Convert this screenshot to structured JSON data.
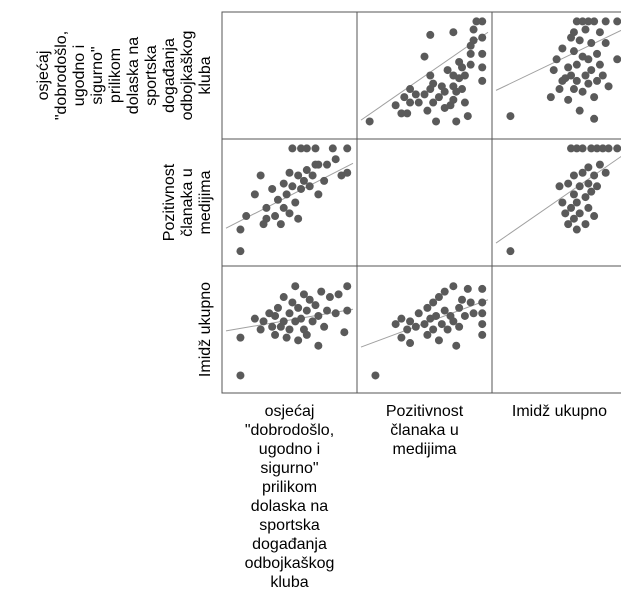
{
  "chart_data": {
    "type": "scatter-matrix",
    "title": "",
    "variables": [
      {
        "key": "osjecaj",
        "label_lines": [
          "osjećaj",
          "\"dobrodošlo,",
          "ugodno i",
          "sigurno\"",
          "prilikom",
          "dolaska na",
          "sportska",
          "događanja",
          "odbojkaškog",
          "kluba"
        ]
      },
      {
        "key": "pozitivnost",
        "label_lines": [
          "Pozitivnost",
          "članaka u",
          "medijima"
        ]
      },
      {
        "key": "imidz",
        "label_lines": [
          "Imidž ukupno"
        ]
      }
    ],
    "fit_line": true,
    "grid": false,
    "point_color": "#5a5a5a",
    "line_color": "#a0a0a0",
    "frame_color": "#555555",
    "cells": [
      {
        "row": 0,
        "col": 1,
        "x_var": "pozitivnost",
        "y_var": "osjecaj",
        "xlim": [
          0.8,
          5.2
        ],
        "ylim": [
          0.8,
          5.2
        ],
        "fit": {
          "x0": 0.8,
          "y0": 1.35,
          "x1": 5.2,
          "y1": 4.6
        },
        "points": [
          [
            1.1,
            1.3
          ],
          [
            2.0,
            1.9
          ],
          [
            2.2,
            1.6
          ],
          [
            2.3,
            2.2
          ],
          [
            2.4,
            1.6
          ],
          [
            2.5,
            2.0
          ],
          [
            2.5,
            2.5
          ],
          [
            2.7,
            2.3
          ],
          [
            2.8,
            2.0
          ],
          [
            3.0,
            2.3
          ],
          [
            3.1,
            1.7
          ],
          [
            3.2,
            2.5
          ],
          [
            3.2,
            3.0
          ],
          [
            3.3,
            2.0
          ],
          [
            3.3,
            2.7
          ],
          [
            3.4,
            1.3
          ],
          [
            3.5,
            2.2
          ],
          [
            3.6,
            2.6
          ],
          [
            3.7,
            2.4
          ],
          [
            3.7,
            1.8
          ],
          [
            3.8,
            3.2
          ],
          [
            3.9,
            1.9
          ],
          [
            4.0,
            3.0
          ],
          [
            4.0,
            2.6
          ],
          [
            4.0,
            2.1
          ],
          [
            4.1,
            2.4
          ],
          [
            4.1,
            1.3
          ],
          [
            4.2,
            3.5
          ],
          [
            4.2,
            2.9
          ],
          [
            4.3,
            2.5
          ],
          [
            4.3,
            3.3
          ],
          [
            4.4,
            3.0
          ],
          [
            4.4,
            2.0
          ],
          [
            4.5,
            1.5
          ],
          [
            4.6,
            4.1
          ],
          [
            4.6,
            3.8
          ],
          [
            4.6,
            3.4
          ],
          [
            4.7,
            4.7
          ],
          [
            4.7,
            4.3
          ],
          [
            4.8,
            5.0
          ],
          [
            5.0,
            5.0
          ],
          [
            5.0,
            4.4
          ],
          [
            5.0,
            3.8
          ],
          [
            5.0,
            3.3
          ],
          [
            5.0,
            2.8
          ],
          [
            4.0,
            4.6
          ],
          [
            3.2,
            4.5
          ],
          [
            3.0,
            3.7
          ]
        ]
      },
      {
        "row": 0,
        "col": 2,
        "x_var": "imidz",
        "y_var": "osjecaj",
        "xlim": [
          0.8,
          5.2
        ],
        "ylim": [
          0.8,
          5.2
        ],
        "fit": {
          "x0": 0.8,
          "y0": 2.45,
          "x1": 5.2,
          "y1": 4.7
        },
        "points": [
          [
            1.3,
            1.5
          ],
          [
            2.7,
            2.2
          ],
          [
            2.8,
            3.2
          ],
          [
            2.9,
            3.6
          ],
          [
            3.0,
            2.5
          ],
          [
            3.1,
            2.8
          ],
          [
            3.1,
            4.0
          ],
          [
            3.2,
            2.9
          ],
          [
            3.3,
            2.1
          ],
          [
            3.3,
            3.3
          ],
          [
            3.4,
            4.4
          ],
          [
            3.4,
            3.0
          ],
          [
            3.5,
            2.5
          ],
          [
            3.5,
            3.9
          ],
          [
            3.6,
            3.4
          ],
          [
            3.6,
            2.8
          ],
          [
            3.7,
            4.3
          ],
          [
            3.7,
            1.7
          ],
          [
            3.8,
            3.7
          ],
          [
            3.8,
            2.4
          ],
          [
            3.9,
            4.7
          ],
          [
            3.9,
            3.0
          ],
          [
            4.0,
            5.0
          ],
          [
            4.0,
            3.6
          ],
          [
            4.0,
            2.7
          ],
          [
            4.1,
            4.2
          ],
          [
            4.1,
            3.2
          ],
          [
            4.2,
            2.2
          ],
          [
            4.2,
            1.4
          ],
          [
            4.3,
            3.8
          ],
          [
            4.3,
            2.8
          ],
          [
            4.4,
            4.6
          ],
          [
            4.4,
            3.4
          ],
          [
            4.5,
            3.0
          ],
          [
            4.6,
            5.0
          ],
          [
            4.6,
            4.2
          ],
          [
            4.7,
            2.6
          ],
          [
            5.0,
            5.0
          ],
          [
            5.0,
            3.6
          ],
          [
            3.6,
            5.0
          ],
          [
            3.5,
            4.6
          ],
          [
            3.8,
            5.0
          ],
          [
            4.2,
            5.0
          ]
        ]
      },
      {
        "row": 1,
        "col": 0,
        "x_var": "osjecaj",
        "y_var": "pozitivnost",
        "xlim": [
          0.8,
          5.2
        ],
        "ylim": [
          0.8,
          5.2
        ],
        "fit": {
          "x0": 0.8,
          "y0": 2.05,
          "x1": 5.2,
          "y1": 4.45
        },
        "points": [
          [
            1.3,
            1.2
          ],
          [
            1.3,
            2.0
          ],
          [
            1.5,
            2.5
          ],
          [
            1.8,
            3.3
          ],
          [
            2.0,
            4.0
          ],
          [
            2.1,
            2.2
          ],
          [
            2.2,
            2.8
          ],
          [
            2.2,
            2.4
          ],
          [
            2.4,
            3.5
          ],
          [
            2.5,
            2.5
          ],
          [
            2.6,
            3.1
          ],
          [
            2.7,
            2.2
          ],
          [
            2.8,
            3.7
          ],
          [
            2.8,
            2.8
          ],
          [
            2.9,
            3.3
          ],
          [
            3.0,
            4.1
          ],
          [
            3.0,
            2.6
          ],
          [
            3.1,
            5.0
          ],
          [
            3.1,
            3.6
          ],
          [
            3.2,
            3.0
          ],
          [
            3.3,
            4.0
          ],
          [
            3.3,
            2.4
          ],
          [
            3.4,
            3.5
          ],
          [
            3.4,
            5.0
          ],
          [
            3.5,
            3.8
          ],
          [
            3.6,
            4.2
          ],
          [
            3.6,
            5.0
          ],
          [
            3.7,
            3.6
          ],
          [
            3.8,
            4.0
          ],
          [
            3.9,
            5.0
          ],
          [
            4.0,
            4.4
          ],
          [
            4.0,
            3.3
          ],
          [
            4.2,
            3.8
          ],
          [
            4.3,
            4.4
          ],
          [
            4.5,
            5.0
          ],
          [
            4.8,
            4.0
          ],
          [
            5.0,
            5.0
          ],
          [
            5.0,
            4.1
          ],
          [
            3.9,
            4.4
          ],
          [
            4.6,
            4.6
          ]
        ]
      },
      {
        "row": 1,
        "col": 2,
        "x_var": "imidz",
        "y_var": "pozitivnost",
        "xlim": [
          0.8,
          5.2
        ],
        "ylim": [
          0.8,
          5.2
        ],
        "fit": {
          "x0": 0.8,
          "y0": 1.5,
          "x1": 5.2,
          "y1": 4.75
        },
        "points": [
          [
            1.3,
            1.2
          ],
          [
            3.0,
            3.6
          ],
          [
            3.1,
            3.0
          ],
          [
            3.2,
            2.6
          ],
          [
            3.3,
            2.2
          ],
          [
            3.3,
            3.7
          ],
          [
            3.4,
            5.0
          ],
          [
            3.4,
            2.8
          ],
          [
            3.5,
            4.0
          ],
          [
            3.5,
            3.3
          ],
          [
            3.5,
            2.4
          ],
          [
            3.6,
            5.0
          ],
          [
            3.6,
            3.0
          ],
          [
            3.6,
            2.0
          ],
          [
            3.7,
            3.6
          ],
          [
            3.7,
            2.6
          ],
          [
            3.8,
            5.0
          ],
          [
            3.8,
            4.1
          ],
          [
            3.9,
            3.2
          ],
          [
            3.9,
            2.2
          ],
          [
            4.0,
            4.3
          ],
          [
            4.0,
            3.7
          ],
          [
            4.0,
            2.8
          ],
          [
            4.1,
            5.0
          ],
          [
            4.1,
            3.4
          ],
          [
            4.2,
            4.0
          ],
          [
            4.3,
            5.0
          ],
          [
            4.3,
            3.6
          ],
          [
            4.4,
            4.4
          ],
          [
            4.5,
            5.0
          ],
          [
            4.6,
            4.1
          ],
          [
            4.7,
            5.0
          ],
          [
            5.0,
            5.0
          ],
          [
            4.2,
            2.5
          ]
        ]
      },
      {
        "row": 2,
        "col": 0,
        "x_var": "osjecaj",
        "y_var": "imidz",
        "xlim": [
          0.8,
          5.2
        ],
        "ylim": [
          0.8,
          5.2
        ],
        "fit": {
          "x0": 0.8,
          "y0": 2.95,
          "x1": 5.2,
          "y1": 3.75
        },
        "points": [
          [
            1.3,
            1.3
          ],
          [
            1.3,
            2.7
          ],
          [
            1.8,
            3.4
          ],
          [
            2.0,
            3.0
          ],
          [
            2.1,
            3.3
          ],
          [
            2.3,
            3.6
          ],
          [
            2.4,
            3.1
          ],
          [
            2.5,
            2.8
          ],
          [
            2.5,
            3.5
          ],
          [
            2.6,
            3.8
          ],
          [
            2.7,
            3.1
          ],
          [
            2.8,
            4.2
          ],
          [
            2.8,
            3.3
          ],
          [
            2.9,
            2.7
          ],
          [
            3.0,
            3.6
          ],
          [
            3.0,
            3.0
          ],
          [
            3.1,
            4.0
          ],
          [
            3.2,
            3.3
          ],
          [
            3.2,
            4.6
          ],
          [
            3.3,
            2.6
          ],
          [
            3.3,
            3.8
          ],
          [
            3.4,
            3.4
          ],
          [
            3.5,
            4.3
          ],
          [
            3.5,
            3.0
          ],
          [
            3.6,
            3.7
          ],
          [
            3.6,
            2.8
          ],
          [
            3.7,
            4.1
          ],
          [
            3.8,
            3.3
          ],
          [
            3.9,
            3.9
          ],
          [
            4.0,
            2.4
          ],
          [
            4.0,
            3.5
          ],
          [
            4.1,
            4.4
          ],
          [
            4.2,
            3.1
          ],
          [
            4.3,
            3.7
          ],
          [
            4.4,
            4.2
          ],
          [
            4.6,
            3.6
          ],
          [
            4.7,
            4.3
          ],
          [
            5.0,
            3.7
          ],
          [
            5.0,
            4.6
          ],
          [
            4.9,
            2.9
          ]
        ]
      },
      {
        "row": 2,
        "col": 1,
        "x_var": "pozitivnost",
        "y_var": "imidz",
        "xlim": [
          0.8,
          5.2
        ],
        "ylim": [
          0.8,
          5.2
        ],
        "fit": {
          "x0": 0.8,
          "y0": 2.35,
          "x1": 5.2,
          "y1": 4.1
        },
        "points": [
          [
            1.3,
            1.3
          ],
          [
            2.0,
            3.2
          ],
          [
            2.2,
            2.7
          ],
          [
            2.2,
            3.4
          ],
          [
            2.4,
            3.0
          ],
          [
            2.5,
            3.3
          ],
          [
            2.5,
            2.5
          ],
          [
            2.7,
            3.1
          ],
          [
            2.8,
            3.6
          ],
          [
            3.0,
            3.2
          ],
          [
            3.1,
            2.8
          ],
          [
            3.1,
            3.8
          ],
          [
            3.2,
            3.4
          ],
          [
            3.3,
            4.0
          ],
          [
            3.3,
            3.0
          ],
          [
            3.4,
            3.5
          ],
          [
            3.5,
            2.6
          ],
          [
            3.5,
            4.2
          ],
          [
            3.6,
            3.2
          ],
          [
            3.7,
            3.7
          ],
          [
            3.7,
            4.4
          ],
          [
            3.8,
            3.0
          ],
          [
            3.9,
            3.5
          ],
          [
            4.0,
            4.6
          ],
          [
            4.0,
            3.3
          ],
          [
            4.1,
            2.4
          ],
          [
            4.2,
            3.8
          ],
          [
            4.2,
            3.1
          ],
          [
            4.3,
            4.1
          ],
          [
            4.4,
            3.5
          ],
          [
            4.5,
            4.5
          ],
          [
            4.6,
            4.0
          ],
          [
            4.7,
            3.6
          ],
          [
            5.0,
            4.5
          ],
          [
            5.0,
            4.0
          ],
          [
            5.0,
            3.6
          ],
          [
            5.0,
            3.2
          ],
          [
            5.0,
            2.8
          ]
        ]
      }
    ]
  }
}
